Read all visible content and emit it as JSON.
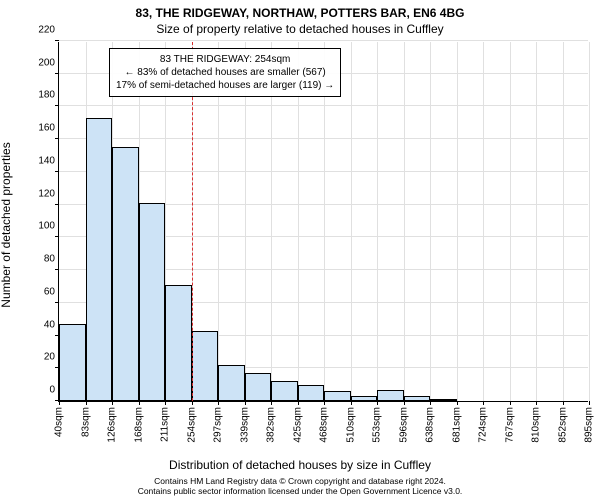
{
  "title_main": "83, THE RIDGEWAY, NORTHAW, POTTERS BAR, EN6 4BG",
  "title_sub": "Size of property relative to detached houses in Cuffley",
  "y_axis_label": "Number of detached properties",
  "x_axis_label": "Distribution of detached houses by size in Cuffley",
  "copyright_line1": "Contains HM Land Registry data © Crown copyright and database right 2024.",
  "copyright_line2": "Contains public sector information licensed under the Open Government Licence v3.0.",
  "chart": {
    "type": "histogram",
    "background_color": "#ffffff",
    "grid_color": "#e0e0e0",
    "axis_color": "#000000",
    "bar_fill": "#cde3f6",
    "bar_border": "#000000",
    "reference_line_color": "#d93030",
    "title_fontsize": 12,
    "label_fontsize": 12,
    "tick_fontsize": 10,
    "annotation_fontsize": 10,
    "ylim": [
      0,
      220
    ],
    "ytick_step": 20,
    "x_ticks": [
      "40sqm",
      "83sqm",
      "126sqm",
      "168sqm",
      "211sqm",
      "254sqm",
      "297sqm",
      "339sqm",
      "382sqm",
      "425sqm",
      "468sqm",
      "510sqm",
      "553sqm",
      "596sqm",
      "638sqm",
      "681sqm",
      "724sqm",
      "767sqm",
      "810sqm",
      "852sqm",
      "895sqm"
    ],
    "bars": [
      {
        "value": 47
      },
      {
        "value": 173
      },
      {
        "value": 155
      },
      {
        "value": 121
      },
      {
        "value": 71
      },
      {
        "value": 43
      },
      {
        "value": 22
      },
      {
        "value": 17
      },
      {
        "value": 12
      },
      {
        "value": 10
      },
      {
        "value": 6
      },
      {
        "value": 3
      },
      {
        "value": 7
      },
      {
        "value": 3
      },
      {
        "value": 1
      },
      {
        "value": 0
      },
      {
        "value": 0
      },
      {
        "value": 0
      },
      {
        "value": 0
      },
      {
        "value": 0
      }
    ],
    "reference_position_sqm": 254,
    "x_min_sqm": 40,
    "x_max_sqm": 895
  },
  "annotation": {
    "line1": "83 THE RIDGEWAY: 254sqm",
    "line2": "← 83% of detached houses are smaller (567)",
    "line3": "17% of semi-detached houses are larger (119) →"
  }
}
